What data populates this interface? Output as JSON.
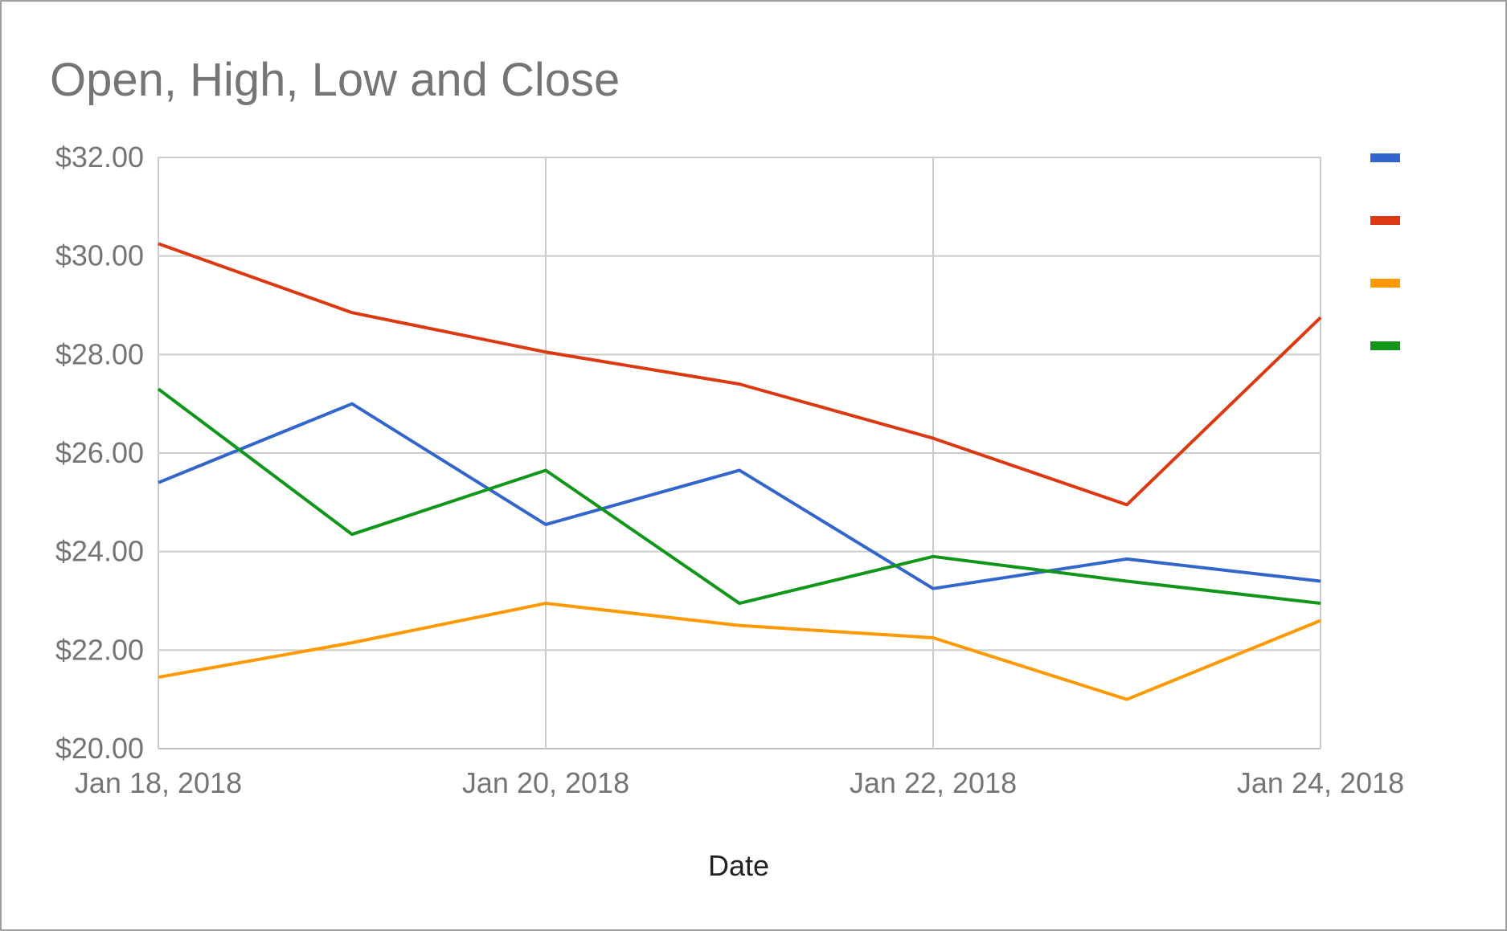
{
  "chart_data": {
    "type": "line",
    "title": "Open, High, Low and Close",
    "xlabel": "Date",
    "ylabel": "",
    "x": [
      "Jan 18, 2018",
      "Jan 19, 2018",
      "Jan 20, 2018",
      "Jan 21, 2018",
      "Jan 22, 2018",
      "Jan 23, 2018",
      "Jan 24, 2018"
    ],
    "x_tick_labels": [
      "Jan 18, 2018",
      "Jan 20, 2018",
      "Jan 22, 2018",
      "Jan 24, 2018"
    ],
    "x_tick_indices": [
      0,
      2,
      4,
      6
    ],
    "ylim": [
      20,
      32
    ],
    "y_ticks": [
      20,
      22,
      24,
      26,
      28,
      30,
      32
    ],
    "y_tick_labels": [
      "$20.00",
      "$22.00",
      "$24.00",
      "$26.00",
      "$28.00",
      "$30.00",
      "$32.00"
    ],
    "grid": true,
    "legend_position": "right",
    "series": [
      {
        "name": "",
        "color": "#3366cc",
        "values": [
          25.4,
          27.0,
          24.55,
          25.65,
          23.25,
          23.85,
          23.4
        ]
      },
      {
        "name": "",
        "color": "#dc3912",
        "values": [
          30.25,
          28.85,
          28.05,
          27.4,
          26.3,
          24.95,
          28.75
        ]
      },
      {
        "name": "",
        "color": "#ff9900",
        "values": [
          21.45,
          22.15,
          22.95,
          22.5,
          22.25,
          21.0,
          22.6
        ]
      },
      {
        "name": "",
        "color": "#109618",
        "values": [
          27.3,
          24.35,
          25.65,
          22.95,
          23.9,
          23.4,
          22.95
        ]
      }
    ]
  }
}
